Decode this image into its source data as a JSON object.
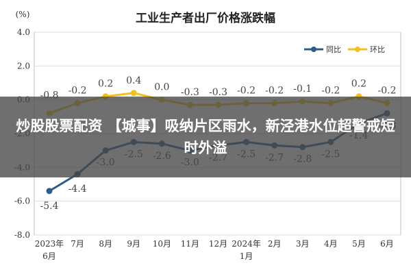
{
  "chart_data": {
    "type": "line",
    "title": "工业生产者出厂价格涨跌幅",
    "ylabel": "(%)",
    "ylim": [
      -8.0,
      4.0
    ],
    "yticks": [
      "4.0",
      "2.0",
      "0.0",
      "-2.0",
      "-4.0",
      "-6.0",
      "-8.0"
    ],
    "categories": [
      "2023年6月",
      "7月",
      "8月",
      "9月",
      "10月",
      "11月",
      "12月",
      "2024年1月",
      "2月",
      "3月",
      "4月",
      "5月",
      "6月"
    ],
    "category_lines": [
      [
        "2023年",
        "6月"
      ],
      [
        "7月"
      ],
      [
        "8月"
      ],
      [
        "9月"
      ],
      [
        "10月"
      ],
      [
        "11月"
      ],
      [
        "12月"
      ],
      [
        "2024年",
        "1月"
      ],
      [
        "2月"
      ],
      [
        "3月"
      ],
      [
        "4月"
      ],
      [
        "5月"
      ],
      [
        "6月"
      ]
    ],
    "grid": true,
    "legend_position": "top-right",
    "series": [
      {
        "name": "同比",
        "color": "#2e5c8a",
        "values": [
          -5.4,
          -4.4,
          -3.0,
          -2.5,
          -2.6,
          -3.0,
          -2.7,
          -2.5,
          -2.7,
          -2.8,
          -2.5,
          -1.4,
          -0.8
        ]
      },
      {
        "name": "环比",
        "color": "#f2c01e",
        "values": [
          -0.8,
          -0.2,
          0.2,
          0.4,
          0.0,
          -0.3,
          -0.3,
          -0.2,
          -0.2,
          -0.1,
          -0.2,
          0.2,
          -0.2
        ]
      }
    ],
    "yoy_labels": [
      "-5.4",
      "-4.4",
      "-3.0",
      "-2.5",
      "-2.6",
      "-3.0",
      "-2.7",
      "-2.5",
      "-2.7",
      "-2.8",
      "-2.5",
      "-1.4",
      "-0.8"
    ],
    "mom_labels": [
      "-0.8",
      "-0.2",
      "0.2",
      "0.4",
      "0.0",
      "-0.3",
      "-0.3",
      "-0.2",
      "-0.2",
      "-0.1",
      "-0.2",
      "0.2",
      "-0.2"
    ]
  },
  "overlay": {
    "text": "炒股股票配资 【城事】吸纳片区雨水，新泾港水位超警戒短时外溢"
  }
}
